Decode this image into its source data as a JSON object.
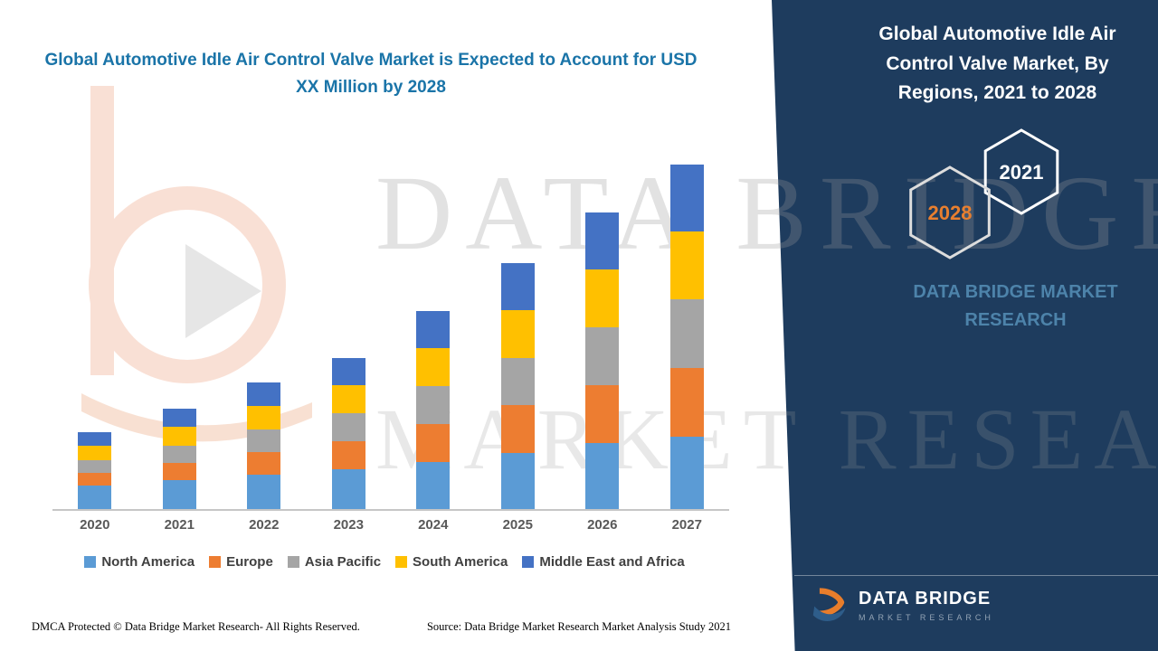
{
  "header": {
    "left_title": "Global Automotive Idle Air Control Valve Market is Expected to Account for USD XX Million by 2028"
  },
  "right_panel": {
    "title": "Global Automotive Idle Air Control Valve Market, By Regions, 2021 to 2028",
    "hexagon_back_label": "2028",
    "hexagon_front_label": "2021",
    "brand_text": "DATA BRIDGE MARKET RESEARCH",
    "logo_name": "DATA BRIDGE",
    "logo_tagline": "MARKET RESEARCH"
  },
  "watermark": {
    "line1": "DATA BRIDGE",
    "line2": "MARKET RESEARCH"
  },
  "footer": {
    "dmca": "DMCA Protected © Data Bridge Market Research- All Rights Reserved.",
    "source": "Source: Data Bridge Market Research Market Analysis Study 2021"
  },
  "colors": {
    "panel_navy": "#1e3c5e",
    "title_blue": "#1a74a8",
    "hexagon_year_orange": "#e87f2f",
    "brand_muted_blue": "#4d83aa"
  },
  "chart_data": {
    "type": "bar",
    "stacked": true,
    "title": "Global Automotive Idle Air Control Valve Market is Expected to Account for USD XX Million by 2028",
    "xlabel": "",
    "ylabel": "",
    "y_axis_labels_visible": false,
    "legend_position": "bottom",
    "note": "Values are relative units estimated from bar heights; no numeric y-axis shown in source (USD XX Million).",
    "categories": [
      "2020",
      "2021",
      "2022",
      "2023",
      "2024",
      "2025",
      "2026",
      "2027"
    ],
    "series": [
      {
        "name": "North America",
        "color": "#5b9bd5",
        "values": [
          26,
          32,
          38,
          44,
          52,
          62,
          73,
          80
        ]
      },
      {
        "name": "Europe",
        "color": "#ed7d31",
        "values": [
          14,
          19,
          25,
          31,
          42,
          53,
          64,
          76
        ]
      },
      {
        "name": "Asia Pacific",
        "color": "#a5a5a5",
        "values": [
          14,
          19,
          25,
          31,
          42,
          52,
          64,
          76
        ]
      },
      {
        "name": "South America",
        "color": "#ffc000",
        "values": [
          16,
          21,
          26,
          31,
          42,
          53,
          64,
          75
        ]
      },
      {
        "name": "Middle East and Africa",
        "color": "#4472c4",
        "values": [
          15,
          20,
          26,
          30,
          41,
          52,
          63,
          74
        ]
      }
    ]
  }
}
